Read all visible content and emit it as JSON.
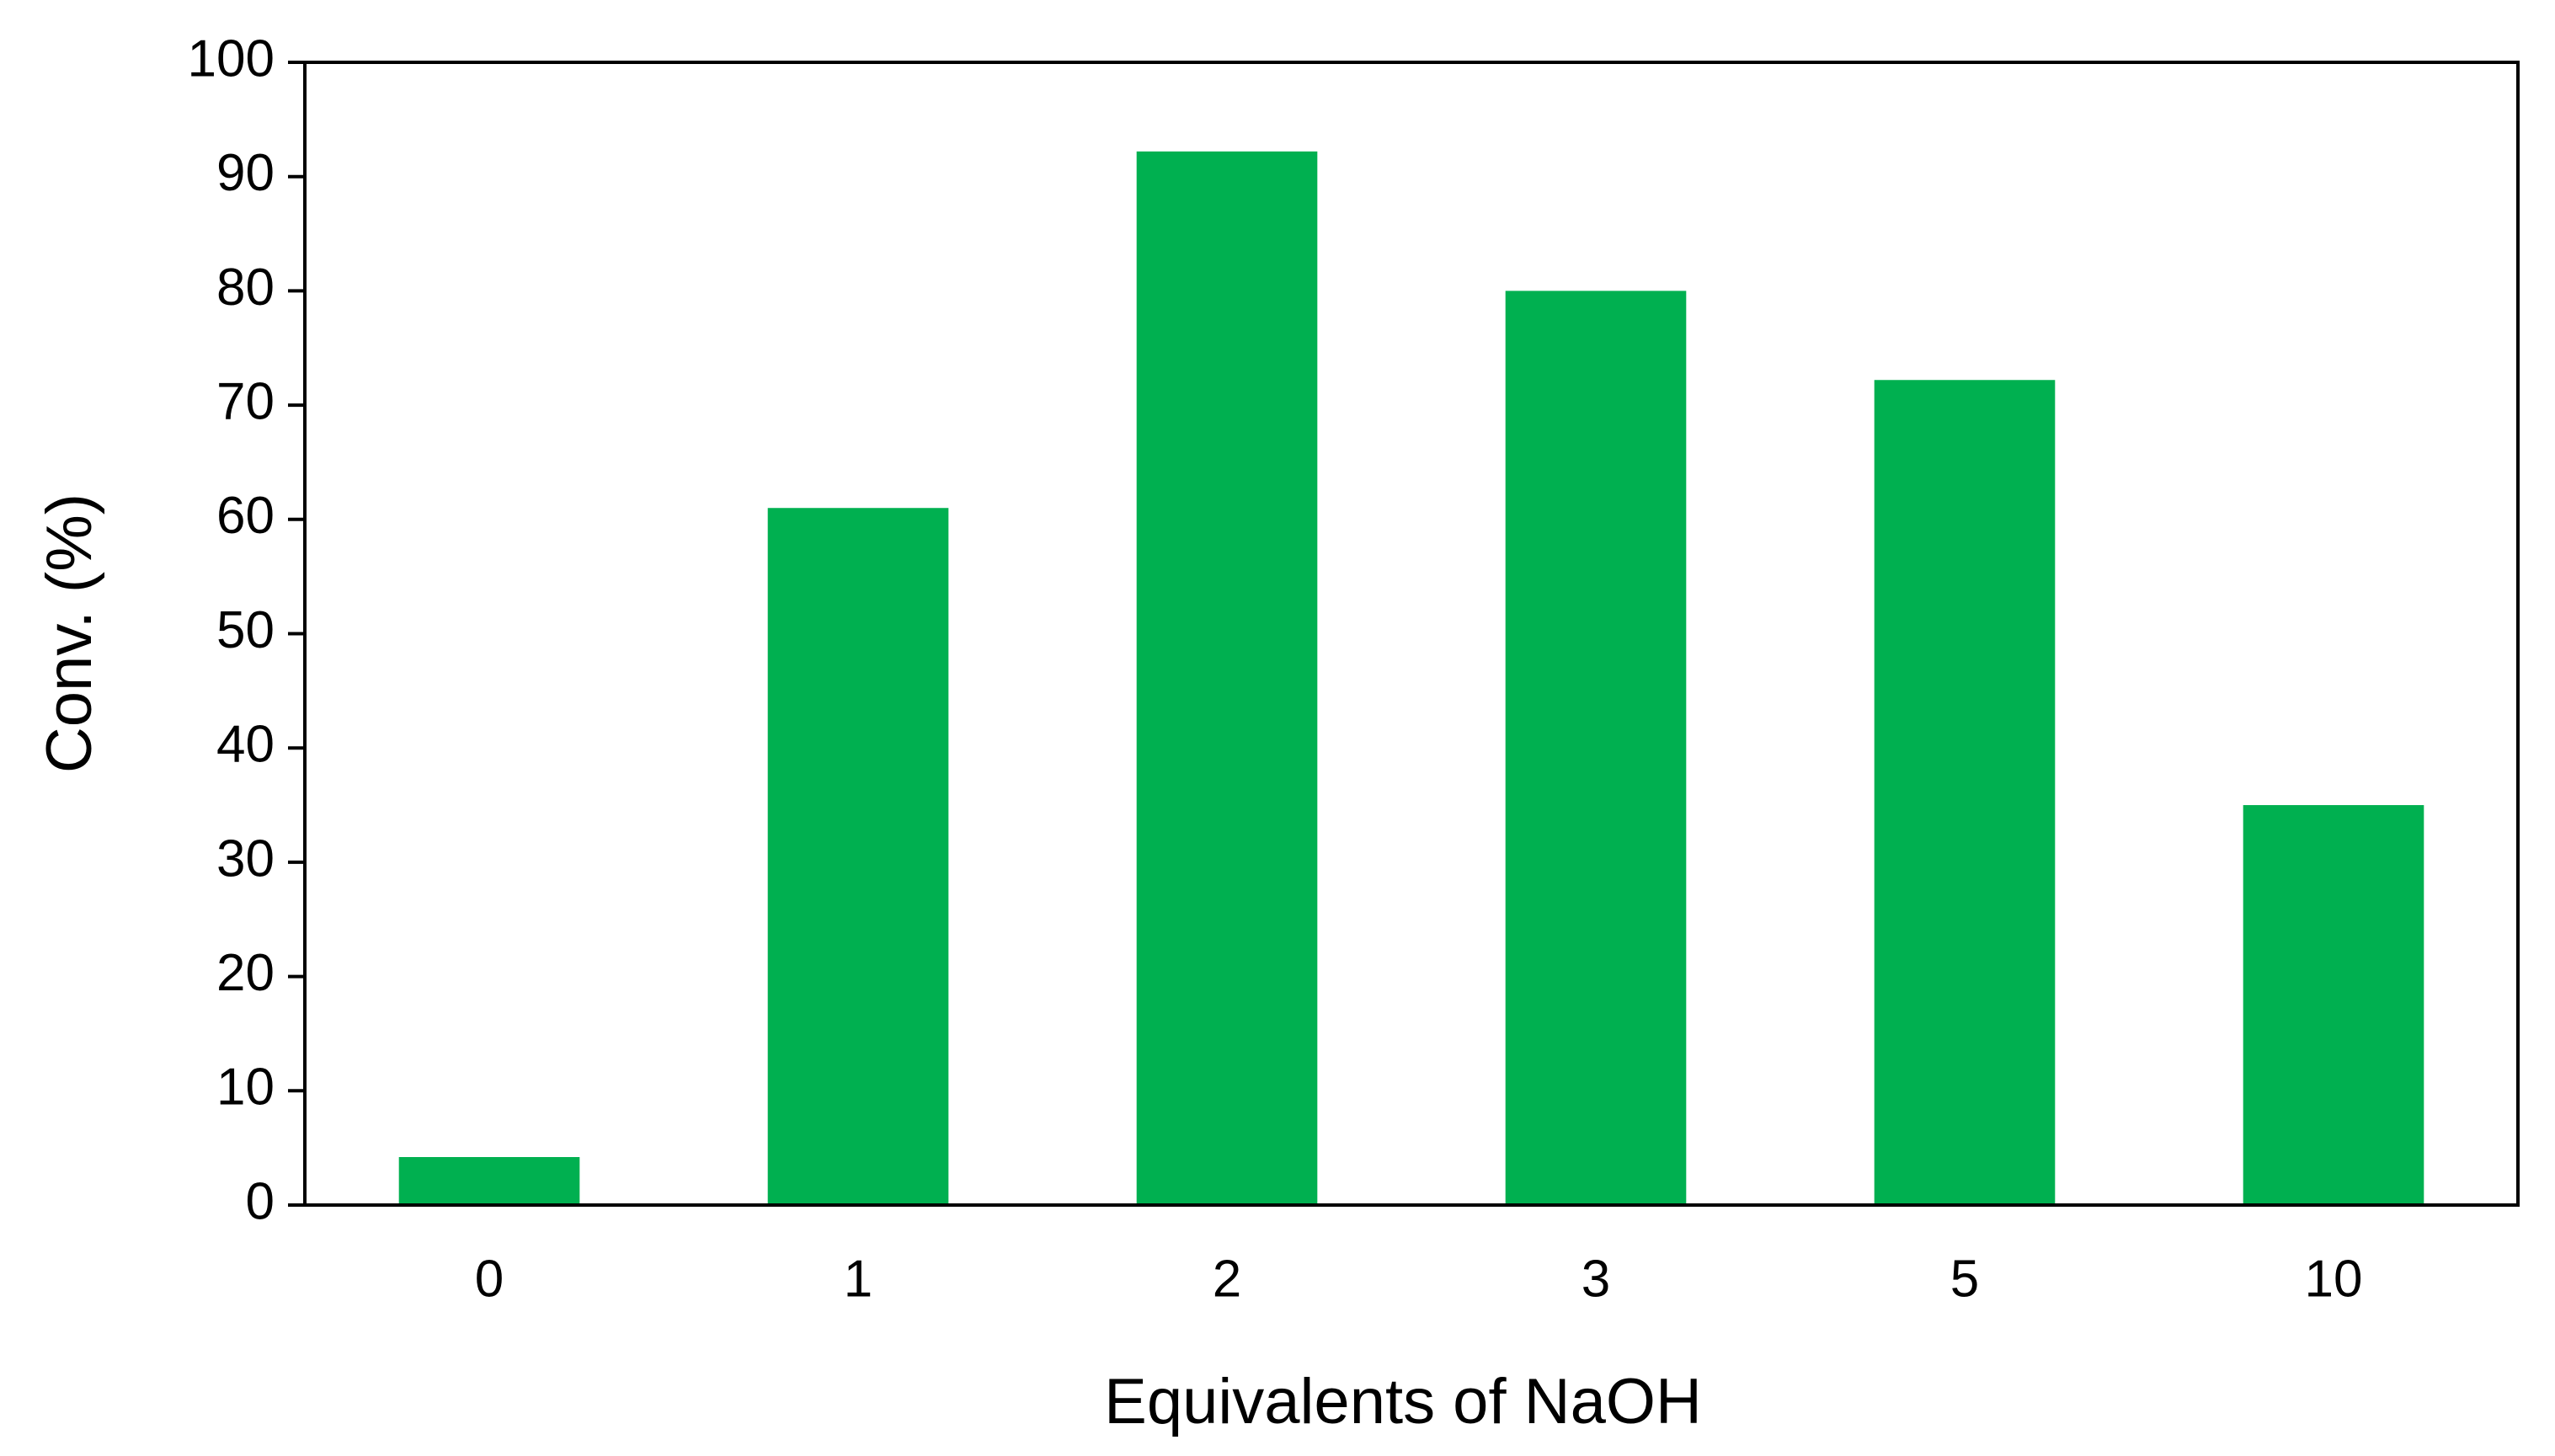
{
  "chart_data": {
    "type": "bar",
    "x_label": "Equivalents of NaOH",
    "y_label": "Conv. (%)",
    "categories": [
      "0",
      "1",
      "2",
      "3",
      "5",
      "10"
    ],
    "values": [
      4.2,
      61,
      92.2,
      80,
      72.2,
      35
    ],
    "color": "#00b050",
    "ylim": [
      0,
      100
    ],
    "yticks": [
      0,
      10,
      20,
      30,
      40,
      50,
      60,
      70,
      80,
      90,
      100
    ],
    "grid": false
  }
}
